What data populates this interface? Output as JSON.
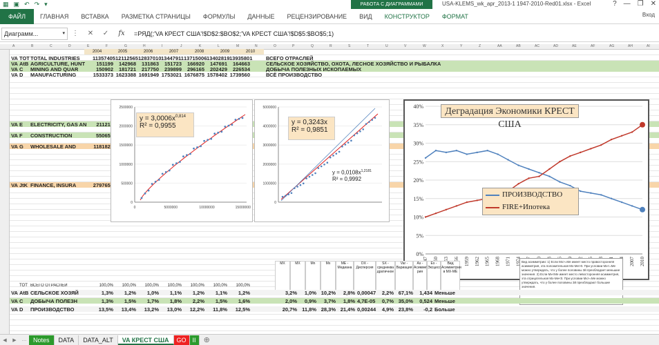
{
  "window": {
    "title": "USA-KLEMS_wk_apr_2013-1 1947-2010-Red01.xlsx - Excel",
    "context_tab": "РАБОТА С ДИАГРАММАМИ",
    "user": "Вход"
  },
  "ribbon": {
    "tabs": [
      "ФАЙЛ",
      "ГЛАВНАЯ",
      "ВСТАВКА",
      "РАЗМЕТКА СТРАНИЦЫ",
      "ФОРМУЛЫ",
      "ДАННЫЕ",
      "РЕЦЕНЗИРОВАНИЕ",
      "ВИД",
      "КОНСТРУКТОР",
      "ФОРМАТ"
    ]
  },
  "formula_bar": {
    "name_box": "Диаграмм...",
    "fx": "fx",
    "formula": "=РЯД(;'VA КРЕСТ США'!$D$2:$BO$2;'VA КРЕСТ США'!$D$5:$BO$5;1)"
  },
  "columns": [
    "A",
    "B",
    "C",
    "D",
    "E",
    "F",
    "G",
    "H",
    "I",
    "J",
    "K",
    "L",
    "M",
    "N",
    "O",
    "P",
    "Q",
    "R",
    "S",
    "T",
    "U",
    "V",
    "W",
    "X",
    "Y",
    "Z",
    "AA",
    "AB",
    "AC",
    "AD",
    "AE",
    "AF",
    "AG",
    "AH",
    "AI"
  ],
  "years_row": [
    "2004",
    "2005",
    "2006",
    "2007",
    "2008",
    "2009",
    "2010"
  ],
  "rows": [
    {
      "a": "VA",
      "b": "TOT",
      "c": "TOTAL INDUSTRIES",
      "v": [
        "11357405",
        "12112565",
        "12837010",
        "13447911",
        "13715006",
        "13402819",
        "13935801"
      ],
      "r": "ВСЕГО ОТРАСЛЕЙ",
      "cls": "bigrow"
    },
    {
      "a": "VA",
      "b": "AtB",
      "c": "AGRICULTURE, HUNT",
      "v": [
        "151199",
        "142968",
        "131863",
        "151723",
        "166920",
        "147691",
        "164663"
      ],
      "r": "СЕЛЬСКОЕ ХОЗЯЙСТВО, ОХОТА, ЛЕСНОЕ ХОЗЯЙСТВО И РЫБАЛКА",
      "cls": "bigrow greenrow"
    },
    {
      "a": "VA",
      "b": "C",
      "c": "MINING AND QUAR",
      "v": [
        "150902",
        "181721",
        "217750",
        "239899",
        "296165",
        "202429",
        "226534"
      ],
      "r": "ДОБЫЧА ПОЛЕЗНЫХ ИСКОПАЕМЫХ",
      "cls": "bigrow greenrow"
    },
    {
      "a": "VA",
      "b": "D",
      "c": "MANUFACTURING",
      "v": [
        "1533373",
        "1623388",
        "1691949",
        "1753021",
        "1676875",
        "1578402",
        "1739560"
      ],
      "r": "ВСЁ ПРОИЗВОДСТВО",
      "cls": "bigrow"
    },
    {
      "a": "VA",
      "b": "E",
      "c": "ELECTRICITY, GAS AN",
      "v": [
        "211217"
      ],
      "r": "",
      "cls": "bigrow greenrow"
    },
    {
      "a": "VA",
      "b": "F",
      "c": "CONSTRUCTION",
      "v": [
        "550655"
      ],
      "r": "",
      "cls": "bigrow greenrow"
    },
    {
      "a": "VA",
      "b": "G",
      "c": "WHOLESALE AND",
      "v": [
        "1181820"
      ],
      "r": "",
      "cls": "bigrow orangerow"
    },
    {
      "a": "VA",
      "b": "JtK",
      "c": "FINANCE, INSURA",
      "v": [
        "2797651"
      ],
      "r": "",
      "cls": "bigrow orangerow"
    }
  ],
  "stats_headers": [
    "MX",
    "MX",
    "Mn",
    "Mx",
    "ME - Медиана",
    "DX - Дисперсия",
    "SX - среднеква дратичное",
    "Var - Вариация",
    "As - Асиммет рия",
    "Ex - Эксцесс",
    "Вид Асимметрии в MX-ME"
  ],
  "stats_rows": [
    {
      "a": "",
      "b": "TOT",
      "c": "ВСЕГО ОТРАСЛЕЙ",
      "v": [
        "100,0%",
        "100,0%",
        "100,0%",
        "100,0%",
        "100,0%",
        "100,0%",
        "100,0%"
      ]
    },
    {
      "a": "VA",
      "b": "AtB",
      "c": "СЕЛЬСКОЕ ХОЗЯЙ",
      "v": [
        "1,3%",
        "1,2%",
        "1,0%",
        "1,1%",
        "1,2%",
        "1,1%",
        "1,2%"
      ],
      "s": [
        "3,2%",
        "1,0%",
        "10,2%",
        "2,8%",
        "0,00047",
        "2,2%",
        "67,1%",
        "1,434",
        "Меньше"
      ]
    },
    {
      "a": "VA",
      "b": "C",
      "c": "ДОБЫЧА ПОЛЕЗН",
      "v": [
        "1,3%",
        "1,5%",
        "1,7%",
        "1,8%",
        "2,2%",
        "1,5%",
        "1,6%"
      ],
      "s": [
        "2,0%",
        "0,9%",
        "3,7%",
        "1,8%",
        "4,7E-05",
        "0,7%",
        "35,0%",
        "0,524",
        "Меньше"
      ]
    },
    {
      "a": "VA",
      "b": "D",
      "c": "ПРОИЗВОДСТВО",
      "v": [
        "13,5%",
        "13,4%",
        "13,2%",
        "13,0%",
        "12,2%",
        "11,8%",
        "12,5%"
      ],
      "s": [
        "20,7%",
        "11,8%",
        "28,3%",
        "21,4%",
        "0,00244",
        "4,9%",
        "23,8%",
        "-0,2",
        "Больше"
      ]
    }
  ],
  "scatter1": {
    "eq": "y = 3,0006x",
    "exp": "0,814",
    "r2": "R² = 0,9955",
    "y_ticks": [
      "2500000",
      "2000000",
      "1500000",
      "1000000",
      "500000",
      "0"
    ],
    "x_ticks": [
      "0",
      "5000000",
      "10000000",
      "15000000"
    ]
  },
  "scatter2": {
    "eq": "y = 0,3243x",
    "r2": "R² = 0,9851",
    "eq2": "y = 0,0108x",
    "exp2": "1,2181",
    "r2b": "R² = 0,9992",
    "y_ticks": [
      "5000000",
      "4000000",
      "3000000",
      "2000000",
      "1000000",
      "0"
    ]
  },
  "chart_data": {
    "type": "line",
    "title": "Деградация Экономики КРЕСТ США",
    "x": [
      "1947",
      "1950",
      "1953",
      "1956",
      "1959",
      "1962",
      "1965",
      "1968",
      "1971",
      "1974",
      "1977",
      "1980",
      "1983",
      "1986",
      "1989",
      "1992",
      "1995",
      "1998",
      "2001",
      "2004",
      "2007",
      "2010"
    ],
    "ylim": [
      0,
      40
    ],
    "y_ticks": [
      "40%",
      "35%",
      "30%",
      "25%",
      "20%",
      "15%",
      "10%",
      "5%",
      "0%"
    ],
    "series": [
      {
        "name": "ПРОИЗВОДСТВО",
        "color": "#4f81bd",
        "values": [
          26,
          28,
          27.5,
          28,
          27,
          27.5,
          28,
          27,
          25.5,
          24,
          23,
          22,
          21,
          19.5,
          18.5,
          17,
          16.5,
          16,
          15,
          14,
          13,
          12
        ]
      },
      {
        "name": "FIRE+Ипотека",
        "color": "#c0392b",
        "values": [
          10,
          11,
          12,
          13,
          14,
          14.5,
          15,
          16,
          17,
          19,
          20.5,
          21,
          23,
          25,
          26.5,
          27.5,
          28.5,
          29.5,
          31,
          32,
          33,
          35
        ]
      }
    ],
    "legend_placement": "bottom-center",
    "grid": true
  },
  "comment_text": "Вид асимметрии: 1) Если Mx>=Me имеет место правосторонняя асимметрия, эта положительная Mx-Me>0. При условии Mx<=Me можно утверждать, что у более половины 3й преобладает меньшие значения. 2) Если Mx<Me имеет место левосторонняя асимметрия, эта отрицательная Mx-Me<0. При условии Mx>=Me можно утверждать, что у более половины 3й преобладают большие значения.",
  "sheet_tabs": [
    "Notes",
    "DATA",
    "DATA_ALT",
    "VA КРЕСТ США",
    "GO",
    "II"
  ],
  "active_tab": "VA КРЕСТ США"
}
